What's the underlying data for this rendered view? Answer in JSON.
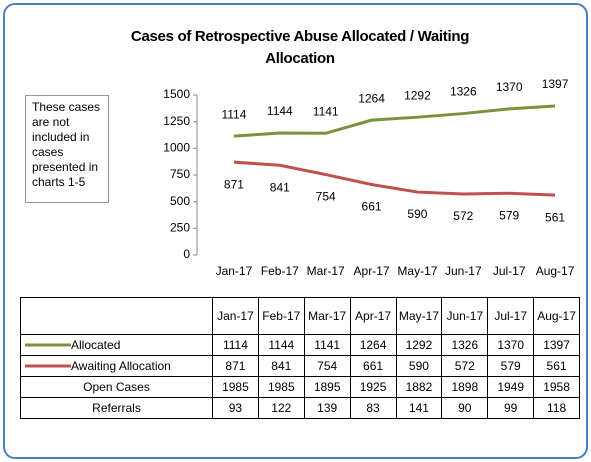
{
  "chart_data": {
    "type": "line",
    "title": "Cases of Retrospective Abuse Allocated / Waiting Allocation",
    "note": "These cases are not included in cases presented in charts 1-5",
    "categories": [
      "Jan-17",
      "Feb-17",
      "Mar-17",
      "Apr-17",
      "May-17",
      "Jun-17",
      "Jul-17",
      "Aug-17"
    ],
    "series": [
      {
        "name": "Allocated",
        "color": "#77933c",
        "values": [
          1114,
          1144,
          1141,
          1264,
          1292,
          1326,
          1370,
          1397
        ]
      },
      {
        "name": "Awaiting Allocation",
        "color": "#c0504d",
        "values": [
          871,
          841,
          754,
          661,
          590,
          572,
          579,
          561
        ]
      }
    ],
    "table_rows": [
      {
        "name": "Open Cases",
        "values": [
          1985,
          1985,
          1895,
          1925,
          1882,
          1898,
          1949,
          1958
        ]
      },
      {
        "name": "Referrals",
        "values": [
          93,
          122,
          139,
          83,
          141,
          90,
          99,
          118
        ]
      }
    ],
    "ylim": [
      0,
      1500
    ],
    "yticks": [
      0,
      250,
      500,
      750,
      1000,
      1250,
      1500
    ],
    "grid": false
  }
}
